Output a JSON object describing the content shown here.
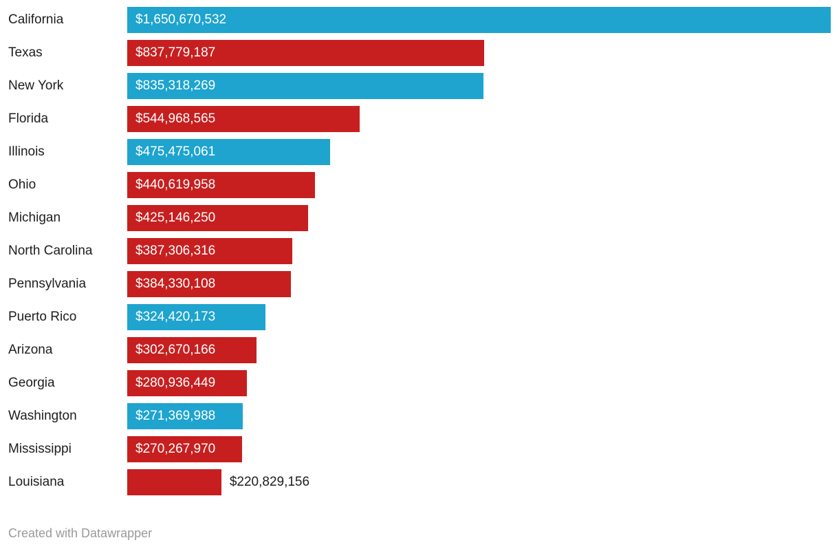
{
  "chart_data": {
    "type": "bar",
    "orientation": "horizontal",
    "grid": false,
    "legend": "none",
    "xlim": [
      0,
      1650670532
    ],
    "categories": [
      "California",
      "Texas",
      "New York",
      "Florida",
      "Illinois",
      "Ohio",
      "Michigan",
      "North Carolina",
      "Pennsylvania",
      "Puerto Rico",
      "Arizona",
      "Georgia",
      "Washington",
      "Mississippi",
      "Louisiana"
    ],
    "values": [
      1650670532,
      837779187,
      835318269,
      544968565,
      475475061,
      440619958,
      425146250,
      387306316,
      384330108,
      324420173,
      302670166,
      280936449,
      271369988,
      270267970,
      220829156
    ],
    "bar_labels": [
      "$1,650,670,532",
      "$837,779,187",
      "$835,318,269",
      "$544,968,565",
      "$475,475,061",
      "$440,619,958",
      "$425,146,250",
      "$387,306,316",
      "$384,330,108",
      "$324,420,173",
      "$302,670,166",
      "$280,936,449",
      "$271,369,988",
      "$270,267,970",
      "$220,829,156"
    ],
    "bar_colors": [
      "blue",
      "red",
      "blue",
      "red",
      "blue",
      "red",
      "red",
      "red",
      "red",
      "blue",
      "red",
      "red",
      "blue",
      "red",
      "red"
    ],
    "label_position": [
      "inside",
      "inside",
      "inside",
      "inside",
      "inside",
      "inside",
      "inside",
      "inside",
      "inside",
      "inside",
      "inside",
      "inside",
      "inside",
      "inside",
      "outside"
    ],
    "color_map": {
      "blue": "#1EA4CE",
      "red": "#C71F1F"
    },
    "text_colors": {
      "category_label": "#1d1d1d",
      "value_label_inside": "#ffffff",
      "value_label_outside": "#1d1d1d"
    }
  },
  "footer": {
    "credit_label": "Created with Datawrapper",
    "credit_color": "#9a9a9a"
  }
}
